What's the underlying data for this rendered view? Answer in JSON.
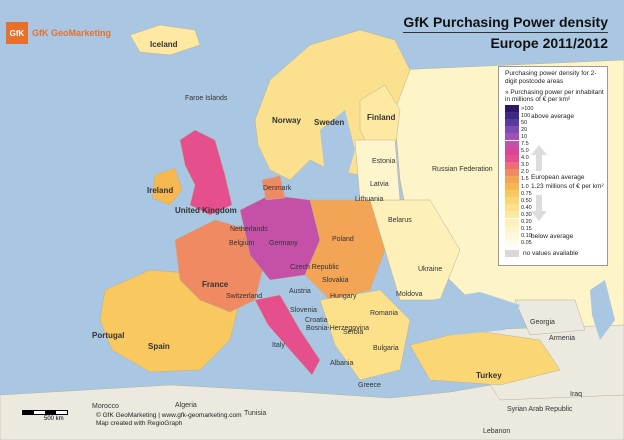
{
  "brand": {
    "logo_text": "GfK",
    "name": "GfK GeoMarketing"
  },
  "title": {
    "line1": "GfK Purchasing Power density",
    "line2": "Europe 2011/2012"
  },
  "legend": {
    "title": "Purchasing power density for 2-digit postcode areas",
    "subtitle": "» Purchasing power per inhabitant in millions of € per km²",
    "classes": [
      {
        "label": ">100",
        "color": "#2b1a63"
      },
      {
        "label": "100",
        "color": "#3b2a86"
      },
      {
        "label": "50",
        "color": "#5a3aa0"
      },
      {
        "label": "20",
        "color": "#7d4db2"
      },
      {
        "label": "10",
        "color": "#a052b8"
      },
      {
        "label": "7.5",
        "color": "#c450a8"
      },
      {
        "label": "5.0",
        "color": "#d8459a"
      },
      {
        "label": "4.0",
        "color": "#e54f8b"
      },
      {
        "label": "3.0",
        "color": "#ec6c7a"
      },
      {
        "label": "2.0",
        "color": "#f08a62"
      },
      {
        "label": "1.5",
        "color": "#f3a454"
      },
      {
        "label": "1.0",
        "color": "#f7b850"
      },
      {
        "label": "0.75",
        "color": "#f9c85e"
      },
      {
        "label": "0.50",
        "color": "#fbd674"
      },
      {
        "label": "0.40",
        "color": "#fce18a"
      },
      {
        "label": "0.30",
        "color": "#fde9a2"
      },
      {
        "label": "0.20",
        "color": "#fdf0b8"
      },
      {
        "label": "0.15",
        "color": "#fef5cc"
      },
      {
        "label": "0.10",
        "color": "#fef9de"
      },
      {
        "label": "0.05",
        "color": "#fffcee"
      }
    ],
    "above": "above average",
    "european_avg": "European average",
    "avg_value": "1.23 millions of € per km²",
    "below": "below average",
    "no_values": "no values available",
    "no_values_color": "#d9d9d9"
  },
  "labels": {
    "iceland": "Iceland",
    "faroe": "Faroe Islands",
    "norway": "Norway",
    "sweden": "Sweden",
    "finland": "Finland",
    "estonia": "Estonia",
    "russia": "Russian Federation",
    "latvia": "Latvia",
    "lithuania": "Lithuania",
    "denmark": "Denmark",
    "uk": "United Kingdom",
    "ireland": "Ireland",
    "belarus": "Belarus",
    "poland": "Poland",
    "germany": "Germany",
    "netherlands": "Netherlands",
    "belgium": "Belgium",
    "czech": "Czech Republic",
    "ukraine": "Ukraine",
    "austria": "Austria",
    "slovakia": "Slovakia",
    "hungary": "Hungary",
    "moldova": "Moldova",
    "france": "France",
    "switzerland": "Switzerland",
    "romania": "Romania",
    "slovenia": "Slovenia",
    "croatia": "Croatia",
    "bosnia": "Bosnia-Herzegovina",
    "serbia": "Serbia",
    "bulgaria": "Bulgaria",
    "portugal": "Portugal",
    "spain": "Spain",
    "italy": "Italy",
    "albania": "Albania",
    "greece": "Greece",
    "turkey": "Turkey",
    "georgia": "Georgia",
    "armenia": "Armenia",
    "morocco": "Morocco",
    "algeria": "Algeria",
    "tunisia": "Tunisia",
    "syria": "Syrian Arab Republic",
    "iraq": "Iraq",
    "lebanon": "Lebanon"
  },
  "footer": {
    "copyright": "© GfK GeoMarketing | www.gfk-geomarketing.com",
    "created": "Map created with RegioGraph"
  },
  "scale": {
    "label": "500 km"
  }
}
